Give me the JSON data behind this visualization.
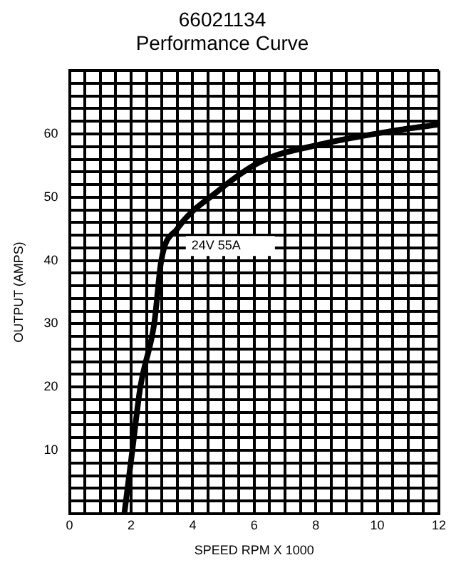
{
  "chart_data": {
    "type": "line",
    "title": "66021134",
    "subtitle": "Performance Curve",
    "xlabel": "SPEED RPM X 1000",
    "ylabel": "OUTPUT (AMPS)",
    "x": [
      1.78,
      2.04,
      2.3,
      2.75,
      2.98,
      3.5,
      4.75,
      6.2,
      8.2,
      10.4,
      12
    ],
    "series": [
      {
        "name": "24V 55A",
        "color": "#000000",
        "values": [
          0,
          10,
          20,
          30,
          40,
          45,
          50.7,
          55.6,
          58.4,
          60.4,
          61.5
        ]
      }
    ],
    "xlim": [
      0,
      12
    ],
    "xticks": [
      0,
      {
        "value": 0.5,
        "label": null
      },
      {
        "value": 1,
        "label": null
      },
      {
        "value": 1.5,
        "label": null
      },
      2,
      {
        "value": 2.5,
        "label": null
      },
      {
        "value": 3,
        "label": null
      },
      {
        "value": 3.5,
        "label": null
      },
      4,
      {
        "value": 4.5,
        "label": null
      },
      {
        "value": 5,
        "label": null
      },
      {
        "value": 5.5,
        "label": null
      },
      6,
      {
        "value": 6.5,
        "label": null
      },
      {
        "value": 7,
        "label": null
      },
      {
        "value": 7.5,
        "label": null
      },
      8,
      {
        "value": 8.5,
        "label": null
      },
      {
        "value": 9,
        "label": null
      },
      {
        "value": 9.5,
        "label": null
      },
      10,
      {
        "value": 10.5,
        "label": null
      },
      {
        "value": 11,
        "label": null
      },
      {
        "value": 11.5,
        "label": null
      },
      12
    ],
    "ylim": [
      0,
      70
    ],
    "yticks": [
      {
        "value": 0,
        "label": null
      },
      {
        "value": 2,
        "label": null
      },
      {
        "value": 4,
        "label": null
      },
      {
        "value": 6,
        "label": null
      },
      {
        "value": 8,
        "label": null
      },
      10,
      {
        "value": 12,
        "label": null
      },
      {
        "value": 14,
        "label": null
      },
      {
        "value": 16,
        "label": null
      },
      {
        "value": 18,
        "label": null
      },
      20,
      {
        "value": 22,
        "label": null
      },
      {
        "value": 24,
        "label": null
      },
      {
        "value": 26,
        "label": null
      },
      {
        "value": 28,
        "label": null
      },
      30,
      {
        "value": 32,
        "label": null
      },
      {
        "value": 34,
        "label": null
      },
      {
        "value": 36,
        "label": null
      },
      {
        "value": 38,
        "label": null
      },
      40,
      {
        "value": 42,
        "label": null
      },
      {
        "value": 44,
        "label": null
      },
      {
        "value": 46,
        "label": null
      },
      {
        "value": 48,
        "label": null
      },
      50,
      {
        "value": 52,
        "label": null
      },
      {
        "value": 54,
        "label": null
      },
      {
        "value": 56,
        "label": null
      },
      {
        "value": 58,
        "label": null
      },
      60,
      {
        "value": 62,
        "label": null
      },
      {
        "value": 64,
        "label": null
      },
      {
        "value": 66,
        "label": null
      },
      {
        "value": 68,
        "label": null
      },
      {
        "value": 70,
        "label": null
      }
    ],
    "grid": true,
    "legend": false,
    "marker": "none",
    "line_style": "solid"
  }
}
